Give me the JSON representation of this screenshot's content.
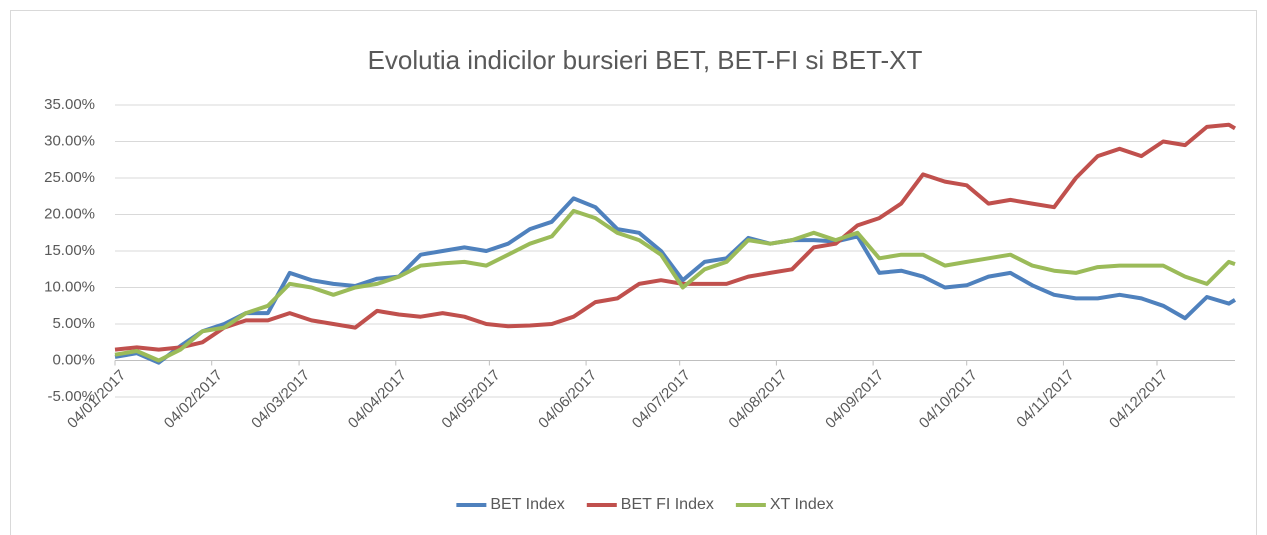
{
  "chart_data": {
    "type": "line",
    "title": "Evolutia indicilor bursieri BET, BET-FI si BET-XT",
    "x": [
      "04/01/2017",
      "11/01/2017",
      "18/01/2017",
      "25/01/2017",
      "01/02/2017",
      "08/02/2017",
      "15/02/2017",
      "22/02/2017",
      "01/03/2017",
      "08/03/2017",
      "15/03/2017",
      "22/03/2017",
      "29/03/2017",
      "05/04/2017",
      "12/04/2017",
      "19/04/2017",
      "26/04/2017",
      "03/05/2017",
      "10/05/2017",
      "17/05/2017",
      "24/05/2017",
      "31/05/2017",
      "07/06/2017",
      "14/06/2017",
      "21/06/2017",
      "28/06/2017",
      "05/07/2017",
      "12/07/2017",
      "19/07/2017",
      "26/07/2017",
      "02/08/2017",
      "09/08/2017",
      "16/08/2017",
      "23/08/2017",
      "30/08/2017",
      "06/09/2017",
      "13/09/2017",
      "20/09/2017",
      "27/09/2017",
      "04/10/2017",
      "11/10/2017",
      "18/10/2017",
      "25/10/2017",
      "01/11/2017",
      "08/11/2017",
      "15/11/2017",
      "22/11/2017",
      "29/11/2017",
      "06/12/2017",
      "13/12/2017",
      "20/12/2017",
      "27/12/2017",
      "29/12/2017"
    ],
    "series": [
      {
        "name": "BET Index",
        "color": "#4f81bd",
        "values": [
          0.5,
          1.0,
          -0.3,
          2.0,
          4.0,
          5.0,
          6.5,
          6.5,
          12.0,
          11.0,
          10.5,
          10.2,
          11.2,
          11.5,
          14.5,
          15.0,
          15.5,
          15.0,
          16.0,
          18.0,
          19.0,
          22.2,
          21.0,
          18.0,
          17.5,
          15.0,
          11.0,
          13.5,
          14.0,
          16.8,
          16.0,
          16.5,
          16.5,
          16.3,
          17.0,
          12.0,
          12.3,
          11.5,
          10.0,
          10.3,
          11.5,
          12.0,
          10.3,
          9.0,
          8.5,
          8.5,
          9.0,
          8.5,
          7.5,
          5.8,
          8.7,
          7.8,
          8.3
        ]
      },
      {
        "name": "BET FI Index",
        "color": "#c0504d",
        "values": [
          1.5,
          1.8,
          1.5,
          1.8,
          2.5,
          4.5,
          5.5,
          5.5,
          6.5,
          5.5,
          5.0,
          4.5,
          6.8,
          6.3,
          6.0,
          6.5,
          6.0,
          5.0,
          4.7,
          4.8,
          5.0,
          6.0,
          8.0,
          8.5,
          10.5,
          11.0,
          10.5,
          10.5,
          10.5,
          11.5,
          12.0,
          12.5,
          15.5,
          16.0,
          18.5,
          19.5,
          21.5,
          25.5,
          24.5,
          24.0,
          21.5,
          22.0,
          21.5,
          21.0,
          25.0,
          28.0,
          29.0,
          28.0,
          30.0,
          29.5,
          32.0,
          32.3,
          31.8
        ]
      },
      {
        "name": "XT Index",
        "color": "#9bbb59",
        "values": [
          0.8,
          1.3,
          0.0,
          1.5,
          4.0,
          4.5,
          6.5,
          7.5,
          10.5,
          10.0,
          9.0,
          10.0,
          10.5,
          11.5,
          13.0,
          13.3,
          13.5,
          13.0,
          14.5,
          16.0,
          17.0,
          20.5,
          19.5,
          17.5,
          16.5,
          14.5,
          10.0,
          12.5,
          13.5,
          16.5,
          16.0,
          16.5,
          17.5,
          16.5,
          17.5,
          14.0,
          14.5,
          14.5,
          13.0,
          13.5,
          14.0,
          14.5,
          13.0,
          12.3,
          12.0,
          12.8,
          13.0,
          13.0,
          13.0,
          11.5,
          10.5,
          13.5,
          13.2
        ]
      }
    ],
    "xlim": [
      "04/01/2017",
      "29/12/2017"
    ],
    "xticks": [
      "04/01/2017",
      "04/02/2017",
      "04/03/2017",
      "04/04/2017",
      "04/05/2017",
      "04/06/2017",
      "04/07/2017",
      "04/08/2017",
      "04/09/2017",
      "04/10/2017",
      "04/11/2017",
      "04/12/2017"
    ],
    "ylim": [
      -5,
      35
    ],
    "yticks": [
      {
        "value": -5,
        "label": "-5.00%"
      },
      {
        "value": 0,
        "label": "0.00%"
      },
      {
        "value": 5,
        "label": "5.00%"
      },
      {
        "value": 10,
        "label": "10.00%"
      },
      {
        "value": 15,
        "label": "15.00%"
      },
      {
        "value": 20,
        "label": "20.00%"
      },
      {
        "value": 25,
        "label": "25.00%"
      },
      {
        "value": 30,
        "label": "30.00%"
      },
      {
        "value": 35,
        "label": "35.00%"
      }
    ],
    "grid": true,
    "legend": "bottom"
  }
}
